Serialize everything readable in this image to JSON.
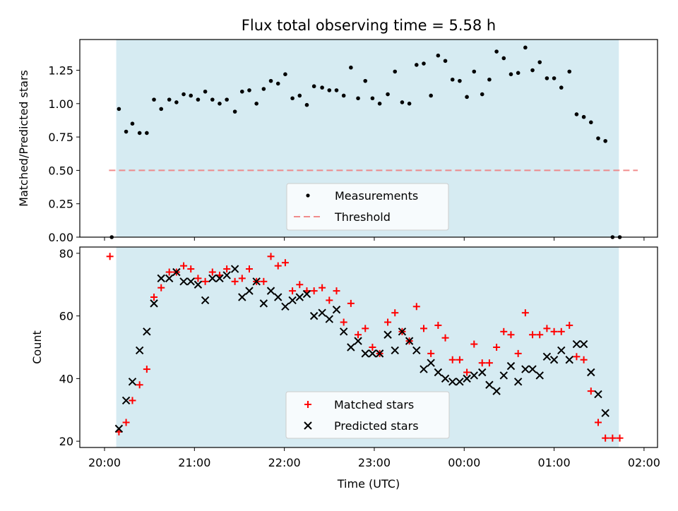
{
  "title": "Flux total observing time = 5.58 h",
  "colors": {
    "shade": "#add8e6",
    "measurement": "#000000",
    "threshold": "#f08080",
    "matched": "#ff0000",
    "predicted": "#000000"
  },
  "chart_data": [
    {
      "type": "scatter",
      "ylabel": "Matched/Predicted stars",
      "ylim": [
        0,
        1.48
      ],
      "xlim_hours": [
        19.725,
        26.15
      ],
      "yticks": [
        "0.00",
        "0.25",
        "0.50",
        "0.75",
        "1.00",
        "1.25"
      ],
      "ytick_values": [
        0,
        0.25,
        0.5,
        0.75,
        1.0,
        1.25
      ],
      "legend_position": "lower-center",
      "observing_window_hours": [
        20.13,
        25.72
      ],
      "threshold": {
        "name": "Threshold",
        "value": 0.5,
        "x_hours": [
          20.05,
          25.93
        ]
      },
      "series": [
        {
          "name": "Measurements",
          "points": [
            [
              20.08,
              0.0
            ],
            [
              20.16,
              0.96
            ],
            [
              20.24,
              0.79
            ],
            [
              20.31,
              0.85
            ],
            [
              20.39,
              0.78
            ],
            [
              20.47,
              0.78
            ],
            [
              20.55,
              1.03
            ],
            [
              20.63,
              0.96
            ],
            [
              20.72,
              1.03
            ],
            [
              20.8,
              1.01
            ],
            [
              20.88,
              1.07
            ],
            [
              20.96,
              1.06
            ],
            [
              21.04,
              1.03
            ],
            [
              21.12,
              1.09
            ],
            [
              21.2,
              1.03
            ],
            [
              21.28,
              1.0
            ],
            [
              21.36,
              1.03
            ],
            [
              21.45,
              0.94
            ],
            [
              21.53,
              1.09
            ],
            [
              21.61,
              1.1
            ],
            [
              21.69,
              1.0
            ],
            [
              21.77,
              1.11
            ],
            [
              21.85,
              1.17
            ],
            [
              21.93,
              1.15
            ],
            [
              22.01,
              1.22
            ],
            [
              22.09,
              1.04
            ],
            [
              22.17,
              1.06
            ],
            [
              22.25,
              0.99
            ],
            [
              22.33,
              1.13
            ],
            [
              22.42,
              1.12
            ],
            [
              22.5,
              1.1
            ],
            [
              22.58,
              1.1
            ],
            [
              22.66,
              1.06
            ],
            [
              22.74,
              1.27
            ],
            [
              22.82,
              1.04
            ],
            [
              22.9,
              1.17
            ],
            [
              22.98,
              1.04
            ],
            [
              23.06,
              1.0
            ],
            [
              23.15,
              1.07
            ],
            [
              23.23,
              1.24
            ],
            [
              23.31,
              1.01
            ],
            [
              23.39,
              1.0
            ],
            [
              23.47,
              1.29
            ],
            [
              23.55,
              1.3
            ],
            [
              23.63,
              1.06
            ],
            [
              23.71,
              1.36
            ],
            [
              23.79,
              1.32
            ],
            [
              23.87,
              1.18
            ],
            [
              23.95,
              1.17
            ],
            [
              24.03,
              1.05
            ],
            [
              24.11,
              1.24
            ],
            [
              24.2,
              1.07
            ],
            [
              24.28,
              1.18
            ],
            [
              24.36,
              1.39
            ],
            [
              24.44,
              1.34
            ],
            [
              24.52,
              1.22
            ],
            [
              24.6,
              1.23
            ],
            [
              24.68,
              1.42
            ],
            [
              24.76,
              1.25
            ],
            [
              24.84,
              1.31
            ],
            [
              24.92,
              1.19
            ],
            [
              25.0,
              1.19
            ],
            [
              25.08,
              1.12
            ],
            [
              25.17,
              1.24
            ],
            [
              25.25,
              0.92
            ],
            [
              25.33,
              0.9
            ],
            [
              25.41,
              0.86
            ],
            [
              25.49,
              0.74
            ],
            [
              25.57,
              0.72
            ],
            [
              25.65,
              0.0
            ],
            [
              25.73,
              0.0
            ]
          ]
        }
      ]
    },
    {
      "type": "scatter",
      "ylabel": "Count",
      "xlabel": "Time (UTC)",
      "ylim": [
        18,
        82
      ],
      "xlim_hours": [
        19.725,
        26.15
      ],
      "yticks": [
        "20",
        "40",
        "60",
        "80"
      ],
      "ytick_values": [
        20,
        40,
        60,
        80
      ],
      "xticks": [
        "20:00",
        "21:00",
        "22:00",
        "23:00",
        "00:00",
        "01:00",
        "02:00"
      ],
      "xtick_hours": [
        20,
        21,
        22,
        23,
        24,
        25,
        26
      ],
      "legend_position": "lower-center",
      "observing_window_hours": [
        20.13,
        25.72
      ],
      "series": [
        {
          "name": "Matched stars",
          "marker": "plus",
          "points": [
            [
              20.06,
              79
            ],
            [
              20.16,
              23
            ],
            [
              20.24,
              26
            ],
            [
              20.31,
              33
            ],
            [
              20.39,
              38
            ],
            [
              20.47,
              43
            ],
            [
              20.55,
              66
            ],
            [
              20.63,
              69
            ],
            [
              20.72,
              74
            ],
            [
              20.8,
              74
            ],
            [
              20.88,
              76
            ],
            [
              20.96,
              75
            ],
            [
              21.04,
              72
            ],
            [
              21.12,
              71
            ],
            [
              21.2,
              74
            ],
            [
              21.28,
              73
            ],
            [
              21.36,
              75
            ],
            [
              21.45,
              71
            ],
            [
              21.53,
              72
            ],
            [
              21.61,
              75
            ],
            [
              21.69,
              71
            ],
            [
              21.77,
              71
            ],
            [
              21.85,
              79
            ],
            [
              21.93,
              76
            ],
            [
              22.01,
              77
            ],
            [
              22.09,
              68
            ],
            [
              22.17,
              70
            ],
            [
              22.25,
              68
            ],
            [
              22.33,
              68
            ],
            [
              22.42,
              69
            ],
            [
              22.5,
              65
            ],
            [
              22.58,
              68
            ],
            [
              22.66,
              58
            ],
            [
              22.74,
              64
            ],
            [
              22.82,
              54
            ],
            [
              22.9,
              56
            ],
            [
              22.98,
              50
            ],
            [
              23.06,
              48
            ],
            [
              23.15,
              58
            ],
            [
              23.23,
              61
            ],
            [
              23.31,
              55
            ],
            [
              23.39,
              52
            ],
            [
              23.47,
              63
            ],
            [
              23.55,
              56
            ],
            [
              23.63,
              48
            ],
            [
              23.71,
              57
            ],
            [
              23.79,
              53
            ],
            [
              23.87,
              46
            ],
            [
              23.95,
              46
            ],
            [
              24.03,
              42
            ],
            [
              24.11,
              51
            ],
            [
              24.2,
              45
            ],
            [
              24.28,
              45
            ],
            [
              24.36,
              50
            ],
            [
              24.44,
              55
            ],
            [
              24.52,
              54
            ],
            [
              24.6,
              48
            ],
            [
              24.68,
              61
            ],
            [
              24.76,
              54
            ],
            [
              24.84,
              54
            ],
            [
              24.92,
              56
            ],
            [
              25.0,
              55
            ],
            [
              25.08,
              55
            ],
            [
              25.17,
              57
            ],
            [
              25.25,
              47
            ],
            [
              25.33,
              46
            ],
            [
              25.41,
              36
            ],
            [
              25.49,
              26
            ],
            [
              25.57,
              21
            ],
            [
              25.65,
              21
            ],
            [
              25.73,
              21
            ]
          ]
        },
        {
          "name": "Predicted stars",
          "marker": "x",
          "points": [
            [
              20.16,
              24
            ],
            [
              20.24,
              33
            ],
            [
              20.31,
              39
            ],
            [
              20.39,
              49
            ],
            [
              20.47,
              55
            ],
            [
              20.55,
              64
            ],
            [
              20.63,
              72
            ],
            [
              20.72,
              72
            ],
            [
              20.8,
              74
            ],
            [
              20.88,
              71
            ],
            [
              20.96,
              71
            ],
            [
              21.04,
              70
            ],
            [
              21.12,
              65
            ],
            [
              21.2,
              72
            ],
            [
              21.28,
              72
            ],
            [
              21.36,
              73
            ],
            [
              21.45,
              75
            ],
            [
              21.53,
              66
            ],
            [
              21.61,
              68
            ],
            [
              21.69,
              71
            ],
            [
              21.77,
              64
            ],
            [
              21.85,
              68
            ],
            [
              21.93,
              66
            ],
            [
              22.01,
              63
            ],
            [
              22.09,
              65
            ],
            [
              22.17,
              66
            ],
            [
              22.25,
              67
            ],
            [
              22.33,
              60
            ],
            [
              22.42,
              61
            ],
            [
              22.5,
              59
            ],
            [
              22.58,
              62
            ],
            [
              22.66,
              55
            ],
            [
              22.74,
              50
            ],
            [
              22.82,
              52
            ],
            [
              22.9,
              48
            ],
            [
              22.98,
              48
            ],
            [
              23.06,
              48
            ],
            [
              23.15,
              54
            ],
            [
              23.23,
              49
            ],
            [
              23.31,
              55
            ],
            [
              23.39,
              52
            ],
            [
              23.47,
              49
            ],
            [
              23.55,
              43
            ],
            [
              23.63,
              45
            ],
            [
              23.71,
              42
            ],
            [
              23.79,
              40
            ],
            [
              23.87,
              39
            ],
            [
              23.95,
              39
            ],
            [
              24.03,
              40
            ],
            [
              24.11,
              41
            ],
            [
              24.2,
              42
            ],
            [
              24.28,
              38
            ],
            [
              24.36,
              36
            ],
            [
              24.44,
              41
            ],
            [
              24.52,
              44
            ],
            [
              24.6,
              39
            ],
            [
              24.68,
              43
            ],
            [
              24.76,
              43
            ],
            [
              24.84,
              41
            ],
            [
              24.92,
              47
            ],
            [
              25.0,
              46
            ],
            [
              25.08,
              49
            ],
            [
              25.17,
              46
            ],
            [
              25.25,
              51
            ],
            [
              25.33,
              51
            ],
            [
              25.41,
              42
            ],
            [
              25.49,
              35
            ],
            [
              25.57,
              29
            ]
          ]
        }
      ]
    }
  ]
}
